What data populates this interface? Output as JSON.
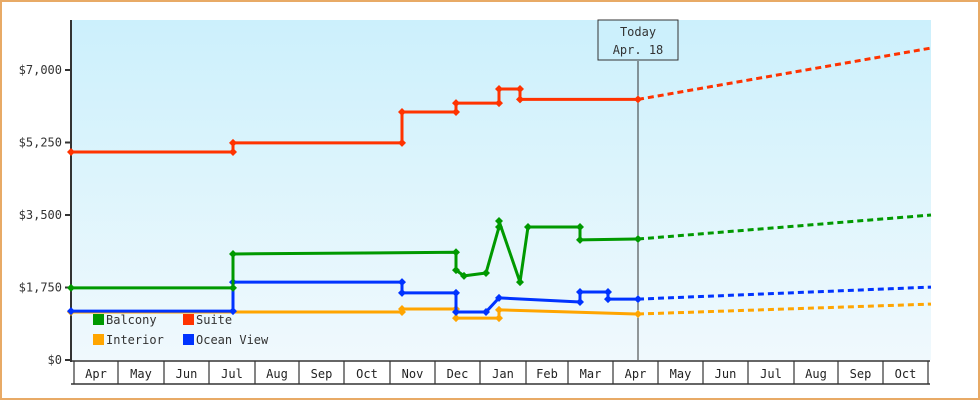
{
  "chart_data": {
    "type": "line",
    "title": "",
    "xlabel": "",
    "ylabel": "",
    "ylim": [
      0,
      8200
    ],
    "y_ticks": [
      "$0",
      "$1,750",
      "$3,500",
      "$5,250",
      "$7,000"
    ],
    "y_tick_values": [
      0,
      1750,
      3500,
      5250,
      7000
    ],
    "x_tick_labels": [
      "Apr",
      "May",
      "Jun",
      "Jul",
      "Aug",
      "Sep",
      "Oct",
      "Nov",
      "Dec",
      "Jan",
      "Feb",
      "Mar",
      "Apr",
      "May",
      "Jun",
      "Jul",
      "Aug",
      "Sep",
      "Oct"
    ],
    "today_marker": {
      "line1": "Today",
      "line2": "Apr. 18"
    },
    "legend": [
      {
        "name": "Balcony",
        "color": "#009900"
      },
      {
        "name": "Suite",
        "color": "#ff3300"
      },
      {
        "name": "Interior",
        "color": "#ffa500"
      },
      {
        "name": "Ocean View",
        "color": "#0033ff"
      }
    ],
    "series": [
      {
        "name": "Suite",
        "color": "#ff3300",
        "points": [
          [
            "Apr-start",
            5020
          ],
          [
            "Jul-start",
            5020
          ],
          [
            "Jul-start",
            5240
          ],
          [
            "Nov-start",
            5240
          ],
          [
            "Nov-start",
            5985
          ],
          [
            "Dec-early",
            5985
          ],
          [
            "Dec-early",
            6200
          ],
          [
            "Jan-mid",
            6200
          ],
          [
            "Jan-mid",
            6540
          ],
          [
            "Jan-late",
            6540
          ],
          [
            "Jan-late",
            6290
          ],
          [
            "Apr-18",
            6290
          ]
        ],
        "projection": [
          [
            "Apr-18",
            6290
          ],
          [
            "Oct-end",
            7530
          ]
        ]
      },
      {
        "name": "Balcony",
        "color": "#009900",
        "points": [
          [
            "Apr-start",
            1740
          ],
          [
            "Jul-start",
            1740
          ],
          [
            "Jul-start",
            2560
          ],
          [
            "Dec-early",
            2600
          ],
          [
            "Dec-early",
            2170
          ],
          [
            "Dec-mid",
            2030
          ],
          [
            "Jan-early",
            2100
          ],
          [
            "Jan-mid",
            3210
          ],
          [
            "Jan-mid",
            3355
          ],
          [
            "Jan-late",
            1880
          ],
          [
            "Feb-start",
            3210
          ],
          [
            "Mar-start",
            3210
          ],
          [
            "Mar-start",
            2900
          ],
          [
            "Apr-18",
            2920
          ]
        ],
        "projection": [
          [
            "Apr-18",
            2920
          ],
          [
            "Oct-end",
            3500
          ]
        ]
      },
      {
        "name": "Ocean View",
        "color": "#0033ff",
        "points": [
          [
            "Apr-start",
            1180
          ],
          [
            "Jul-start",
            1180
          ],
          [
            "Jul-start",
            1880
          ],
          [
            "Nov-start",
            1880
          ],
          [
            "Nov-start",
            1620
          ],
          [
            "Dec-early",
            1620
          ],
          [
            "Dec-early",
            1160
          ],
          [
            "Jan-early",
            1160
          ],
          [
            "Jan-mid",
            1500
          ],
          [
            "Mar-start",
            1400
          ],
          [
            "Mar-start",
            1640
          ],
          [
            "Mar-end",
            1640
          ],
          [
            "Mar-end",
            1470
          ],
          [
            "Apr-18",
            1470
          ]
        ],
        "projection": [
          [
            "Apr-18",
            1470
          ],
          [
            "Oct-end",
            1760
          ]
        ]
      },
      {
        "name": "Interior",
        "color": "#ffa500",
        "points": [
          [
            "Apr-start",
            1160
          ],
          [
            "Nov-start",
            1160
          ],
          [
            "Nov-start",
            1230
          ],
          [
            "Dec-early",
            1230
          ],
          [
            "Dec-early",
            1010
          ],
          [
            "Jan-mid",
            1010
          ],
          [
            "Jan-mid",
            1210
          ],
          [
            "Apr-18",
            1110
          ]
        ],
        "projection": [
          [
            "Apr-18",
            1110
          ],
          [
            "Oct-end",
            1350
          ]
        ]
      }
    ]
  },
  "plot": {
    "background_top": "#ccf0fc",
    "background_bottom": "#f0f9fd",
    "frame_color": "#e8aa66"
  }
}
